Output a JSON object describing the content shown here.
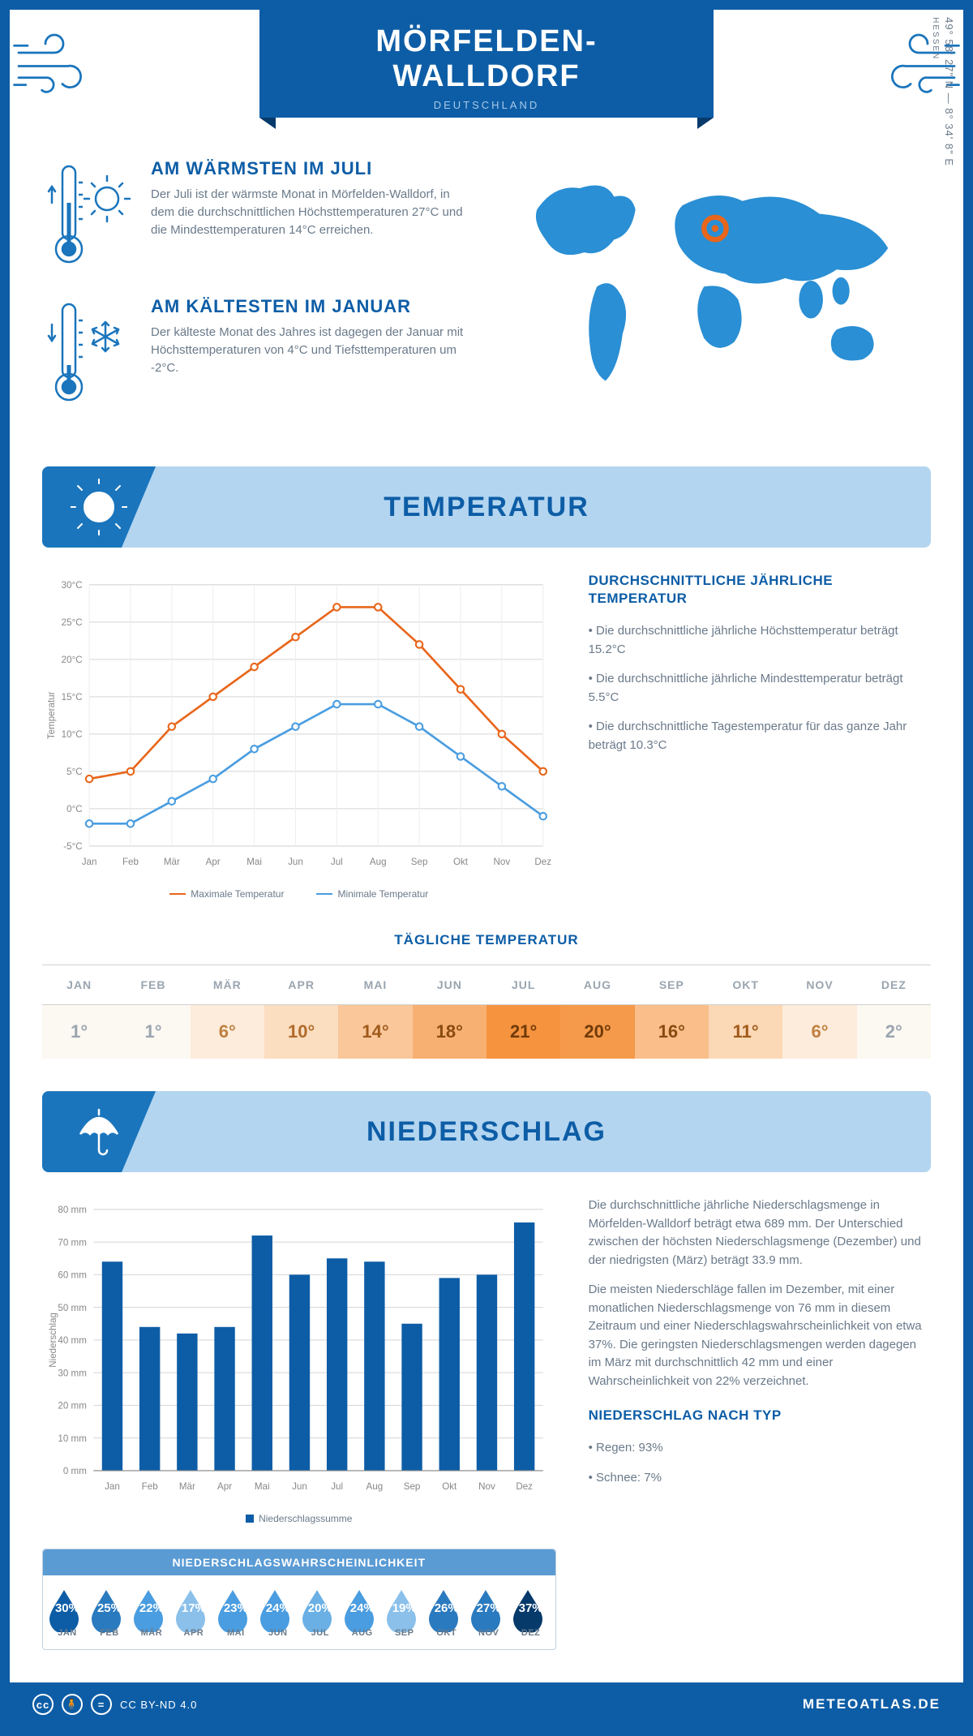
{
  "header": {
    "city": "MÖRFELDEN-WALLDORF",
    "country": "DEUTSCHLAND",
    "coords": "49° 58' 27\" N — 8° 34' 8\" E",
    "region": "HESSEN"
  },
  "colors": {
    "primary": "#0d5da6",
    "accent": "#1a75bc",
    "lightblue": "#b3d5f0",
    "midblue": "#5a9bd4",
    "text_muted": "#6a7a8a",
    "orange": "#e8661b",
    "chart_blue": "#4a9de0"
  },
  "warm": {
    "title": "AM WÄRMSTEN IM JULI",
    "text": "Der Juli ist der wärmste Monat in Mörfelden-Walldorf, in dem die durchschnittlichen Höchsttemperaturen 27°C und die Mindesttemperaturen 14°C erreichen."
  },
  "cold": {
    "title": "AM KÄLTESTEN IM JANUAR",
    "text": "Der kälteste Monat des Jahres ist dagegen der Januar mit Höchsttemperaturen von 4°C und Tiefsttemperaturen um -2°C."
  },
  "months": [
    "Jan",
    "Feb",
    "Mär",
    "Apr",
    "Mai",
    "Jun",
    "Jul",
    "Aug",
    "Sep",
    "Okt",
    "Nov",
    "Dez"
  ],
  "months_upper": [
    "JAN",
    "FEB",
    "MÄR",
    "APR",
    "MAI",
    "JUN",
    "JUL",
    "AUG",
    "SEP",
    "OKT",
    "NOV",
    "DEZ"
  ],
  "temp_section": {
    "title": "TEMPERATUR",
    "side_title": "DURCHSCHNITTLICHE JÄHRLICHE TEMPERATUR",
    "bullets": [
      "• Die durchschnittliche jährliche Höchsttemperatur beträgt 15.2°C",
      "• Die durchschnittliche jährliche Mindesttemperatur beträgt 5.5°C",
      "• Die durchschnittliche Tagestemperatur für das ganze Jahr beträgt 10.3°C"
    ],
    "chart": {
      "ylabel": "Temperatur",
      "ylim": [
        -5,
        30
      ],
      "ytick_step": 5,
      "max_series": {
        "label": "Maximale Temperatur",
        "color": "#e8661b",
        "values": [
          4,
          5,
          11,
          15,
          19,
          23,
          27,
          27,
          22,
          16,
          10,
          5
        ]
      },
      "min_series": {
        "label": "Minimale Temperatur",
        "color": "#4a9de0",
        "values": [
          -2,
          -2,
          1,
          4,
          8,
          11,
          14,
          14,
          11,
          7,
          3,
          -1
        ]
      }
    },
    "daily": {
      "title": "TÄGLICHE TEMPERATUR",
      "values": [
        "1°",
        "1°",
        "6°",
        "10°",
        "14°",
        "18°",
        "21°",
        "20°",
        "16°",
        "11°",
        "6°",
        "2°"
      ],
      "cell_bg": [
        "#fcf8f2",
        "#fcf8f2",
        "#fdecdb",
        "#fbddc0",
        "#f9c79a",
        "#f7b071",
        "#f5933f",
        "#f59a4a",
        "#f9be8a",
        "#fbd8b6",
        "#fdecdb",
        "#fcf8f2"
      ],
      "cell_fg": [
        "#9aa5b0",
        "#9aa5b0",
        "#c08040",
        "#b06b2a",
        "#a05a1a",
        "#8a4a10",
        "#703a08",
        "#703a08",
        "#8a4a10",
        "#a05a1a",
        "#c08040",
        "#9aa5b0"
      ]
    }
  },
  "precip": {
    "title": "NIEDERSCHLAG",
    "text1": "Die durchschnittliche jährliche Niederschlagsmenge in Mörfelden-Walldorf beträgt etwa 689 mm. Der Unterschied zwischen der höchsten Niederschlagsmenge (Dezember) und der niedrigsten (März) beträgt 33.9 mm.",
    "text2": "Die meisten Niederschläge fallen im Dezember, mit einer monatlichen Niederschlagsmenge von 76 mm in diesem Zeitraum und einer Niederschlagswahrscheinlichkeit von etwa 37%. Die geringsten Niederschlagsmengen werden dagegen im März mit durchschnittlich 42 mm und einer Wahrscheinlichkeit von 22% verzeichnet.",
    "type_title": "NIEDERSCHLAG NACH TYP",
    "type_bullets": [
      "• Regen: 93%",
      "• Schnee: 7%"
    ],
    "chart": {
      "ylabel": "Niederschlag",
      "ylim": [
        0,
        80
      ],
      "ytick_step": 10,
      "series": {
        "label": "Niederschlagssumme",
        "color": "#0d5da6",
        "values": [
          64,
          44,
          42,
          44,
          72,
          60,
          65,
          64,
          45,
          59,
          60,
          76
        ]
      }
    },
    "prob": {
      "title": "NIEDERSCHLAGSWAHRSCHEINLICHKEIT",
      "values": [
        30,
        25,
        22,
        17,
        23,
        24,
        20,
        24,
        19,
        26,
        27,
        37
      ],
      "colors": [
        "#0d5da6",
        "#2a7abf",
        "#4a9de0",
        "#8ac0ea",
        "#4a9de0",
        "#4a9de0",
        "#6ab0e5",
        "#4a9de0",
        "#8ac0ea",
        "#2a7abf",
        "#2a7abf",
        "#063a6b"
      ]
    }
  },
  "footer": {
    "license": "CC BY-ND 4.0",
    "site": "METEOATLAS.DE"
  }
}
